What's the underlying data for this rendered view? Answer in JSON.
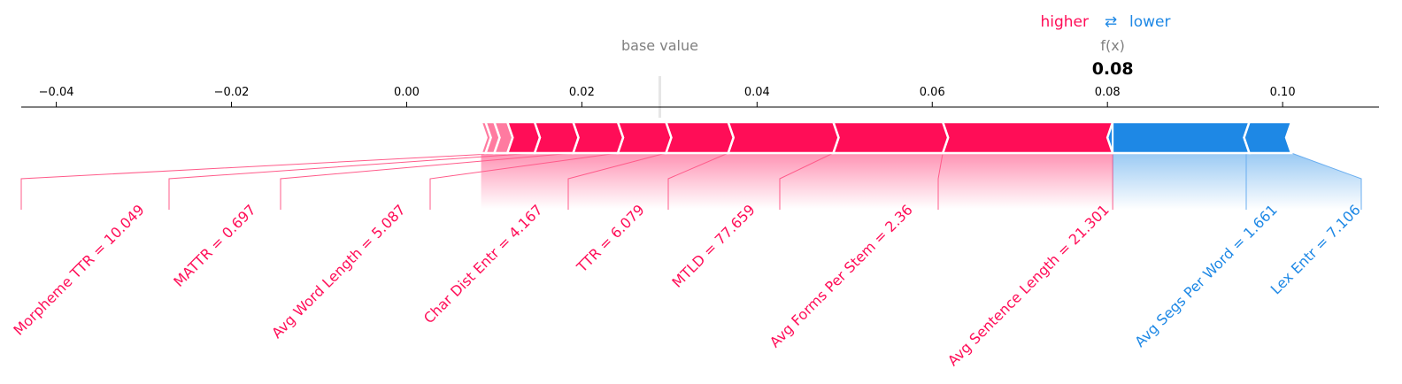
{
  "legend": {
    "higher_label": "higher",
    "lower_label": "lower",
    "arrow_glyph": "⇄",
    "higher_color": "#ff0d57",
    "lower_color": "#1e88e5"
  },
  "base_value_label": "base value",
  "fx_label": "f(x)",
  "fx_value_text": "0.08",
  "chart_data": {
    "type": "force",
    "xlim": [
      -0.044,
      0.111
    ],
    "ticks": [
      -0.04,
      -0.02,
      0.0,
      0.02,
      0.04,
      0.06,
      0.08,
      0.1
    ],
    "tick_labels": [
      "−0.04",
      "−0.02",
      "0.00",
      "0.02",
      "0.04",
      "0.06",
      "0.08",
      "0.10"
    ],
    "base_value": 0.0289,
    "output_value": 0.0806,
    "positive_color": "#ff0d57",
    "negative_color": "#1e88e5",
    "positive_features": [
      {
        "label": "Avg Sentence Length = 21.301",
        "start": 0.0612,
        "end": 0.0806
      },
      {
        "label": "Avg Forms Per Stem = 2.36",
        "start": 0.0487,
        "end": 0.0612
      },
      {
        "label": "MTLD = 77.659",
        "start": 0.0367,
        "end": 0.0487
      },
      {
        "label": "TTR = 6.079",
        "start": 0.0296,
        "end": 0.0367
      },
      {
        "label": "Char Dist Entr = 4.167",
        "start": 0.0241,
        "end": 0.0296
      },
      {
        "label": "Avg Word Length = 5.087",
        "start": 0.019,
        "end": 0.0241
      },
      {
        "label": "MATTR = 0.697",
        "start": 0.0146,
        "end": 0.019
      },
      {
        "label": "Morpheme TTR = 10.049",
        "start": 0.0115,
        "end": 0.0146
      }
    ],
    "positive_unlabeled": [
      {
        "start": 0.01,
        "end": 0.0115
      },
      {
        "start": 0.009,
        "end": 0.01
      },
      {
        "start": 0.0085,
        "end": 0.009
      }
    ],
    "negative_features": [
      {
        "label": "Avg Segs Per Word = 1.661",
        "start": 0.0806,
        "end": 0.0962
      },
      {
        "label": "Lex Entr = 7.106",
        "start": 0.0962,
        "end": 0.101
      }
    ]
  }
}
